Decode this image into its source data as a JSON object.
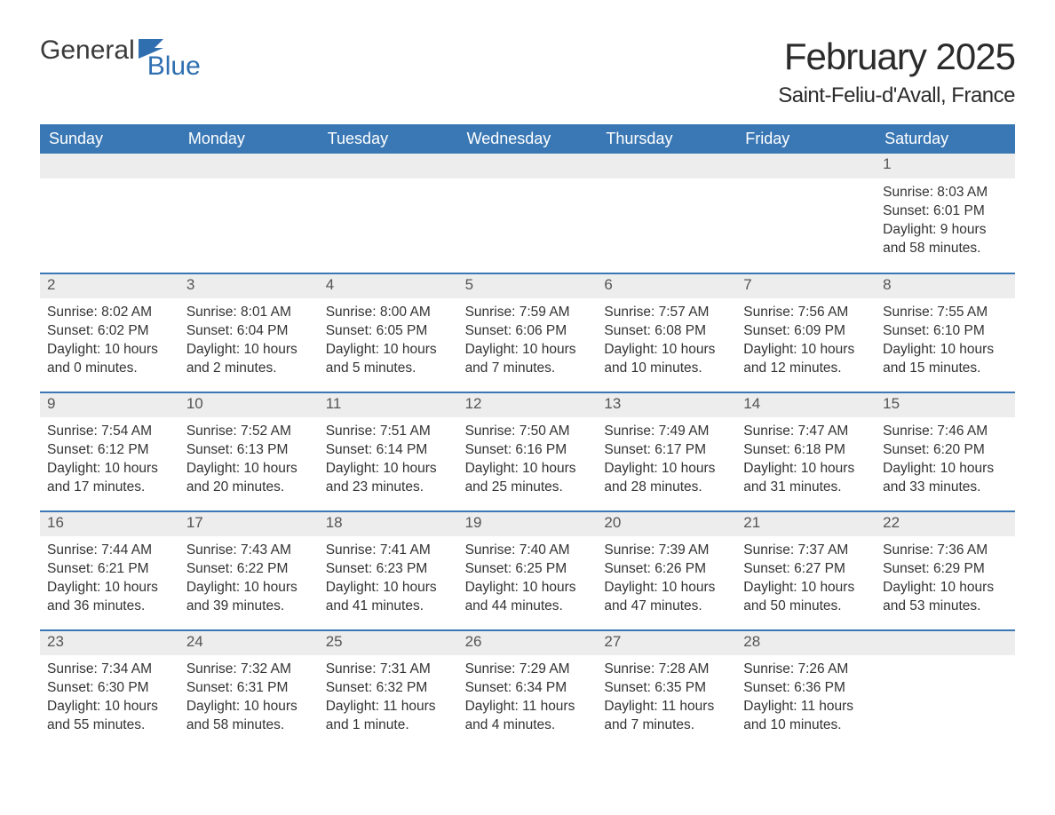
{
  "logo": {
    "word1": "General",
    "word2": "Blue"
  },
  "title": "February 2025",
  "location": "Saint-Feliu-d'Avall, France",
  "colors": {
    "header_bg": "#3a78b5",
    "header_text": "#ffffff",
    "daynum_bg": "#ededed",
    "text": "#333333",
    "accent": "#2f6fb0"
  },
  "day_names": [
    "Sunday",
    "Monday",
    "Tuesday",
    "Wednesday",
    "Thursday",
    "Friday",
    "Saturday"
  ],
  "weeks": [
    [
      {
        "n": "",
        "sunrise": "",
        "sunset": "",
        "daylight": ""
      },
      {
        "n": "",
        "sunrise": "",
        "sunset": "",
        "daylight": ""
      },
      {
        "n": "",
        "sunrise": "",
        "sunset": "",
        "daylight": ""
      },
      {
        "n": "",
        "sunrise": "",
        "sunset": "",
        "daylight": ""
      },
      {
        "n": "",
        "sunrise": "",
        "sunset": "",
        "daylight": ""
      },
      {
        "n": "",
        "sunrise": "",
        "sunset": "",
        "daylight": ""
      },
      {
        "n": "1",
        "sunrise": "Sunrise: 8:03 AM",
        "sunset": "Sunset: 6:01 PM",
        "daylight": "Daylight: 9 hours and 58 minutes."
      }
    ],
    [
      {
        "n": "2",
        "sunrise": "Sunrise: 8:02 AM",
        "sunset": "Sunset: 6:02 PM",
        "daylight": "Daylight: 10 hours and 0 minutes."
      },
      {
        "n": "3",
        "sunrise": "Sunrise: 8:01 AM",
        "sunset": "Sunset: 6:04 PM",
        "daylight": "Daylight: 10 hours and 2 minutes."
      },
      {
        "n": "4",
        "sunrise": "Sunrise: 8:00 AM",
        "sunset": "Sunset: 6:05 PM",
        "daylight": "Daylight: 10 hours and 5 minutes."
      },
      {
        "n": "5",
        "sunrise": "Sunrise: 7:59 AM",
        "sunset": "Sunset: 6:06 PM",
        "daylight": "Daylight: 10 hours and 7 minutes."
      },
      {
        "n": "6",
        "sunrise": "Sunrise: 7:57 AM",
        "sunset": "Sunset: 6:08 PM",
        "daylight": "Daylight: 10 hours and 10 minutes."
      },
      {
        "n": "7",
        "sunrise": "Sunrise: 7:56 AM",
        "sunset": "Sunset: 6:09 PM",
        "daylight": "Daylight: 10 hours and 12 minutes."
      },
      {
        "n": "8",
        "sunrise": "Sunrise: 7:55 AM",
        "sunset": "Sunset: 6:10 PM",
        "daylight": "Daylight: 10 hours and 15 minutes."
      }
    ],
    [
      {
        "n": "9",
        "sunrise": "Sunrise: 7:54 AM",
        "sunset": "Sunset: 6:12 PM",
        "daylight": "Daylight: 10 hours and 17 minutes."
      },
      {
        "n": "10",
        "sunrise": "Sunrise: 7:52 AM",
        "sunset": "Sunset: 6:13 PM",
        "daylight": "Daylight: 10 hours and 20 minutes."
      },
      {
        "n": "11",
        "sunrise": "Sunrise: 7:51 AM",
        "sunset": "Sunset: 6:14 PM",
        "daylight": "Daylight: 10 hours and 23 minutes."
      },
      {
        "n": "12",
        "sunrise": "Sunrise: 7:50 AM",
        "sunset": "Sunset: 6:16 PM",
        "daylight": "Daylight: 10 hours and 25 minutes."
      },
      {
        "n": "13",
        "sunrise": "Sunrise: 7:49 AM",
        "sunset": "Sunset: 6:17 PM",
        "daylight": "Daylight: 10 hours and 28 minutes."
      },
      {
        "n": "14",
        "sunrise": "Sunrise: 7:47 AM",
        "sunset": "Sunset: 6:18 PM",
        "daylight": "Daylight: 10 hours and 31 minutes."
      },
      {
        "n": "15",
        "sunrise": "Sunrise: 7:46 AM",
        "sunset": "Sunset: 6:20 PM",
        "daylight": "Daylight: 10 hours and 33 minutes."
      }
    ],
    [
      {
        "n": "16",
        "sunrise": "Sunrise: 7:44 AM",
        "sunset": "Sunset: 6:21 PM",
        "daylight": "Daylight: 10 hours and 36 minutes."
      },
      {
        "n": "17",
        "sunrise": "Sunrise: 7:43 AM",
        "sunset": "Sunset: 6:22 PM",
        "daylight": "Daylight: 10 hours and 39 minutes."
      },
      {
        "n": "18",
        "sunrise": "Sunrise: 7:41 AM",
        "sunset": "Sunset: 6:23 PM",
        "daylight": "Daylight: 10 hours and 41 minutes."
      },
      {
        "n": "19",
        "sunrise": "Sunrise: 7:40 AM",
        "sunset": "Sunset: 6:25 PM",
        "daylight": "Daylight: 10 hours and 44 minutes."
      },
      {
        "n": "20",
        "sunrise": "Sunrise: 7:39 AM",
        "sunset": "Sunset: 6:26 PM",
        "daylight": "Daylight: 10 hours and 47 minutes."
      },
      {
        "n": "21",
        "sunrise": "Sunrise: 7:37 AM",
        "sunset": "Sunset: 6:27 PM",
        "daylight": "Daylight: 10 hours and 50 minutes."
      },
      {
        "n": "22",
        "sunrise": "Sunrise: 7:36 AM",
        "sunset": "Sunset: 6:29 PM",
        "daylight": "Daylight: 10 hours and 53 minutes."
      }
    ],
    [
      {
        "n": "23",
        "sunrise": "Sunrise: 7:34 AM",
        "sunset": "Sunset: 6:30 PM",
        "daylight": "Daylight: 10 hours and 55 minutes."
      },
      {
        "n": "24",
        "sunrise": "Sunrise: 7:32 AM",
        "sunset": "Sunset: 6:31 PM",
        "daylight": "Daylight: 10 hours and 58 minutes."
      },
      {
        "n": "25",
        "sunrise": "Sunrise: 7:31 AM",
        "sunset": "Sunset: 6:32 PM",
        "daylight": "Daylight: 11 hours and 1 minute."
      },
      {
        "n": "26",
        "sunrise": "Sunrise: 7:29 AM",
        "sunset": "Sunset: 6:34 PM",
        "daylight": "Daylight: 11 hours and 4 minutes."
      },
      {
        "n": "27",
        "sunrise": "Sunrise: 7:28 AM",
        "sunset": "Sunset: 6:35 PM",
        "daylight": "Daylight: 11 hours and 7 minutes."
      },
      {
        "n": "28",
        "sunrise": "Sunrise: 7:26 AM",
        "sunset": "Sunset: 6:36 PM",
        "daylight": "Daylight: 11 hours and 10 minutes."
      },
      {
        "n": "",
        "sunrise": "",
        "sunset": "",
        "daylight": ""
      }
    ]
  ]
}
